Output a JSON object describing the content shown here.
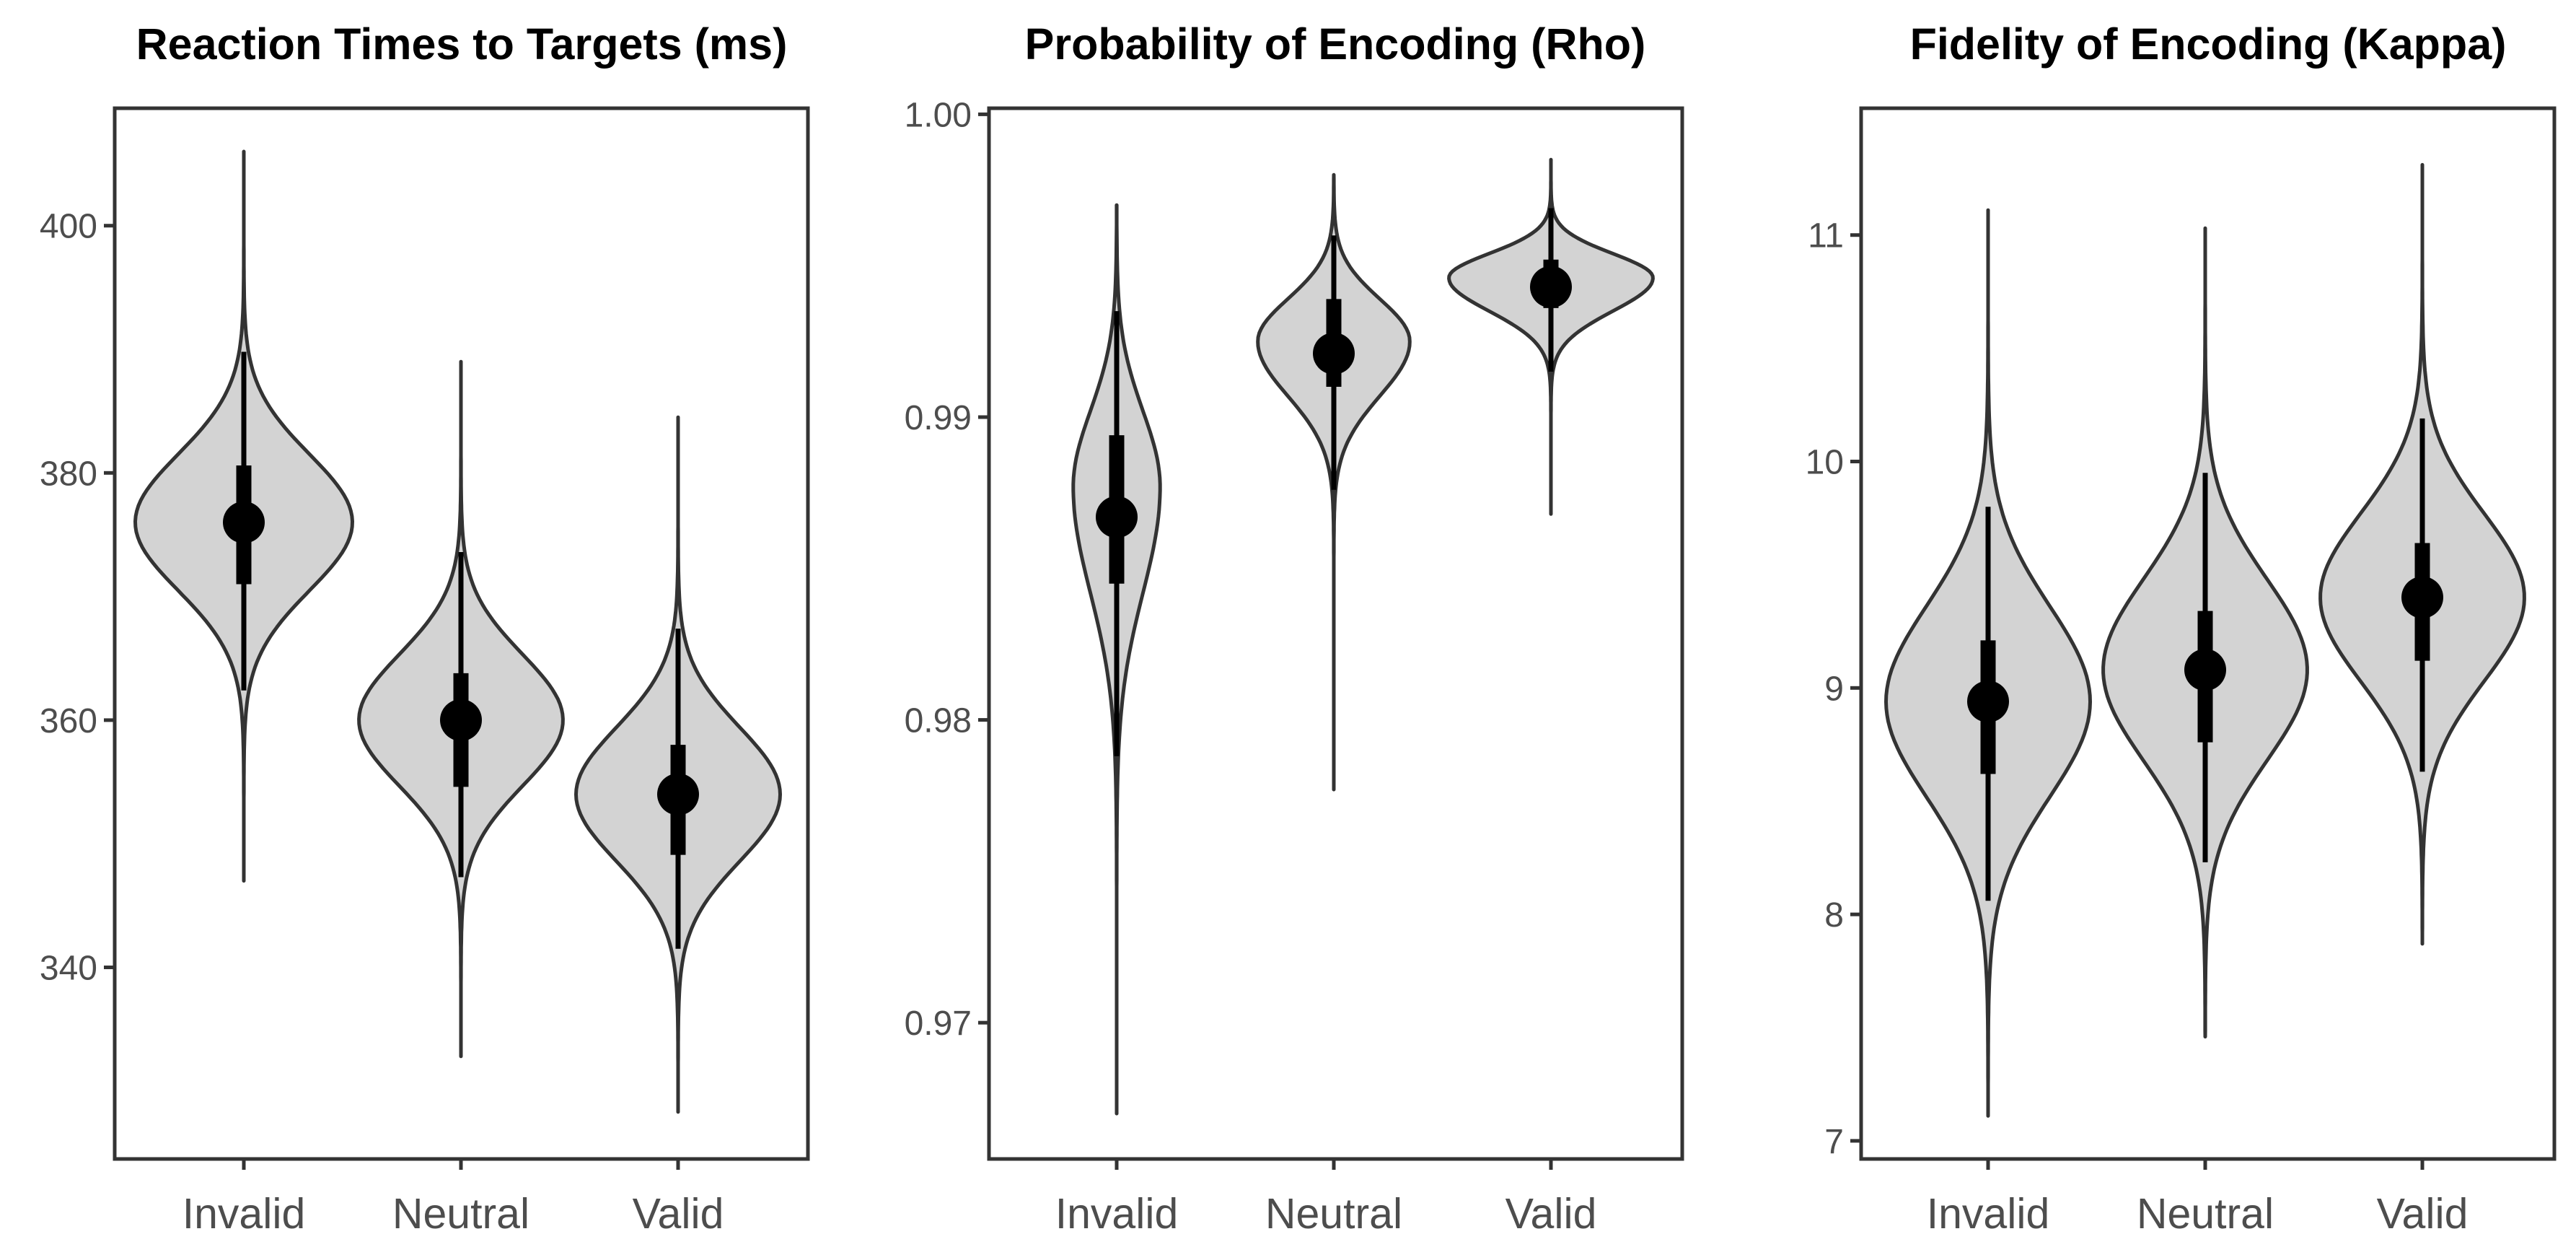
{
  "colors": {
    "violin_fill": "#d3d3d3",
    "violin_stroke": "#333333",
    "interval": "#000000",
    "axis": "#333333",
    "tick_text": "#4d4d4d",
    "title": "#000000"
  },
  "chart_data": [
    {
      "type": "violin",
      "title": "Reaction Times to Targets (ms)",
      "xlabel": "",
      "ylabel": "",
      "ylim": [
        324.5,
        409.5
      ],
      "yticks": [
        340,
        360,
        380,
        400
      ],
      "ytick_labels": [
        "340",
        "360",
        "380",
        "400"
      ],
      "categories": [
        "Invalid",
        "Neutral",
        "Valid"
      ],
      "violins": [
        {
          "category": "Invalid",
          "median": 376,
          "q_low": 371,
          "q_high": 380.6,
          "ci_low": 362.4,
          "ci_high": 389.8,
          "min": 347,
          "max": 406,
          "mode": 376,
          "sd_low": 5.5,
          "sd_high": 5.5,
          "max_halfwidth": 0.5
        },
        {
          "category": "Neutral",
          "median": 360,
          "q_low": 354.6,
          "q_high": 363.8,
          "ci_low": 347.3,
          "ci_high": 373.6,
          "min": 332.8,
          "max": 389,
          "mode": 360,
          "sd_low": 5.3,
          "sd_high": 5.3,
          "max_halfwidth": 0.47
        },
        {
          "category": "Valid",
          "median": 354,
          "q_low": 349.1,
          "q_high": 358,
          "ci_low": 341.5,
          "ci_high": 367.4,
          "min": 328.3,
          "max": 384.5,
          "mode": 354,
          "sd_low": 5.4,
          "sd_high": 5.4,
          "max_halfwidth": 0.47
        }
      ]
    },
    {
      "type": "violin",
      "title": "Probability of Encoding (Rho)",
      "xlabel": "",
      "ylabel": "",
      "ylim": [
        0.9655,
        1.0002
      ],
      "yticks": [
        0.97,
        0.98,
        0.99,
        1.0
      ],
      "ytick_labels": [
        "0.97",
        "0.98",
        "0.99",
        "1.00"
      ],
      "categories": [
        "Invalid",
        "Neutral",
        "Valid"
      ],
      "violins": [
        {
          "category": "Invalid",
          "median": 0.9867,
          "q_low": 0.9845,
          "q_high": 0.9894,
          "ci_low": 0.9788,
          "ci_high": 0.9935,
          "min": 0.967,
          "max": 0.997,
          "mode": 0.9877,
          "sd_low": 0.0035,
          "sd_high": 0.0025,
          "max_halfwidth": 0.2
        },
        {
          "category": "Neutral",
          "median": 0.9921,
          "q_low": 0.991,
          "q_high": 0.9939,
          "ci_low": 0.9876,
          "ci_high": 0.996,
          "min": 0.9777,
          "max": 0.998,
          "mode": 0.9925,
          "sd_low": 0.0018,
          "sd_high": 0.0014,
          "max_halfwidth": 0.35
        },
        {
          "category": "Valid",
          "median": 0.9943,
          "q_low": 0.9936,
          "q_high": 0.9952,
          "ci_low": 0.9915,
          "ci_high": 0.9969,
          "min": 0.9868,
          "max": 0.9985,
          "mode": 0.9946,
          "sd_low": 0.0011,
          "sd_high": 0.0008,
          "max_halfwidth": 0.47
        }
      ]
    },
    {
      "type": "violin",
      "title": "Fidelity of Encoding (Kappa)",
      "xlabel": "",
      "ylabel": "",
      "ylim": [
        6.92,
        11.56
      ],
      "yticks": [
        7,
        8,
        9,
        10,
        11
      ],
      "ytick_labels": [
        "7",
        "8",
        "9",
        "10",
        "11"
      ],
      "categories": [
        "Invalid",
        "Neutral",
        "Valid"
      ],
      "violins": [
        {
          "category": "Invalid",
          "median": 8.94,
          "q_low": 8.62,
          "q_high": 9.21,
          "ci_low": 8.06,
          "ci_high": 9.8,
          "min": 7.11,
          "max": 11.11,
          "mode": 8.94,
          "sd_low": 0.42,
          "sd_high": 0.42,
          "max_halfwidth": 0.47
        },
        {
          "category": "Neutral",
          "median": 9.08,
          "q_low": 8.76,
          "q_high": 9.34,
          "ci_low": 8.23,
          "ci_high": 9.95,
          "min": 7.46,
          "max": 11.03,
          "mode": 9.08,
          "sd_low": 0.4,
          "sd_high": 0.4,
          "max_halfwidth": 0.47
        },
        {
          "category": "Valid",
          "median": 9.4,
          "q_low": 9.12,
          "q_high": 9.64,
          "ci_low": 8.63,
          "ci_high": 10.19,
          "min": 7.87,
          "max": 11.31,
          "mode": 9.4,
          "sd_low": 0.37,
          "sd_high": 0.37,
          "max_halfwidth": 0.47
        }
      ]
    }
  ]
}
